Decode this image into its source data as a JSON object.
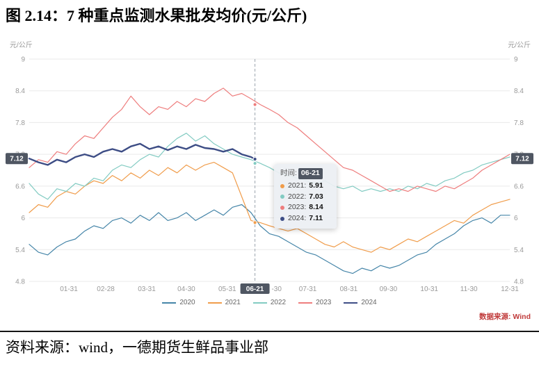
{
  "title": "图 2.14：7 种重点监测水果批发均价(元/公斤)",
  "caption": "资料来源：wind，一德期货生鲜品事业部",
  "chart_source": "数据来源: Wind",
  "axis_unit": "元/公斤",
  "tooltip": {
    "time_label": "时间:",
    "time_value": "06-21",
    "entries": [
      {
        "name": "2021",
        "value": "5.91",
        "color": "#f09c4a"
      },
      {
        "name": "2022",
        "value": "7.03",
        "color": "#82cbc2"
      },
      {
        "name": "2023",
        "value": "8.14",
        "color": "#ee7d7d"
      },
      {
        "name": "2024",
        "value": "7.11",
        "color": "#3d4d85"
      }
    ]
  },
  "chart_data": {
    "type": "line",
    "title": "7 种重点监测水果批发均价(元/公斤)",
    "ylabel": "元/公斤",
    "ylim": [
      4.8,
      9
    ],
    "yticks": [
      4.8,
      5.4,
      6,
      6.6,
      7.2,
      7.8,
      8.4,
      9
    ],
    "grid": true,
    "legend_position": "bottom",
    "badge_color": "#4f5662",
    "xticks": [
      {
        "day": 31,
        "label": "01-31"
      },
      {
        "day": 59,
        "label": "02-28"
      },
      {
        "day": 90,
        "label": "03-31"
      },
      {
        "day": 120,
        "label": "04-30"
      },
      {
        "day": 151,
        "label": "05-31"
      },
      {
        "day": 172,
        "label": "06-21",
        "badge": true
      },
      {
        "day": 181,
        "label": "-30",
        "dx": 14
      },
      {
        "day": 212,
        "label": "07-31"
      },
      {
        "day": 243,
        "label": "08-31"
      },
      {
        "day": 273,
        "label": "09-30"
      },
      {
        "day": 304,
        "label": "10-31"
      },
      {
        "day": 334,
        "label": "11-30"
      },
      {
        "day": 365,
        "label": "12-31"
      }
    ],
    "highlight": {
      "day": 172,
      "label": "06-21",
      "value": 7.12,
      "axis_value": "7.12"
    },
    "sample_days": [
      1,
      8,
      15,
      22,
      29,
      36,
      43,
      50,
      57,
      64,
      71,
      78,
      85,
      92,
      99,
      106,
      113,
      120,
      127,
      134,
      141,
      148,
      155,
      162,
      169,
      176,
      183,
      190,
      197,
      204,
      211,
      218,
      225,
      232,
      239,
      246,
      253,
      260,
      267,
      274,
      281,
      288,
      295,
      302,
      309,
      316,
      323,
      330,
      337,
      344,
      351,
      358,
      365
    ],
    "series": [
      {
        "name": "2020",
        "color": "#4585a8",
        "width": 1.2,
        "values": [
          5.5,
          5.35,
          5.3,
          5.45,
          5.55,
          5.6,
          5.75,
          5.85,
          5.8,
          5.95,
          6.0,
          5.9,
          6.05,
          5.95,
          6.1,
          5.95,
          6.0,
          6.1,
          5.95,
          6.05,
          6.15,
          6.05,
          6.2,
          6.25,
          6.1,
          5.85,
          5.7,
          5.65,
          5.55,
          5.45,
          5.35,
          5.3,
          5.2,
          5.1,
          5.0,
          4.95,
          5.05,
          5.0,
          5.1,
          5.05,
          5.1,
          5.2,
          5.3,
          5.35,
          5.5,
          5.6,
          5.7,
          5.85,
          5.95,
          6.0,
          5.9,
          6.05,
          6.05
        ]
      },
      {
        "name": "2021",
        "color": "#f09c4a",
        "width": 1.2,
        "values": [
          6.1,
          6.25,
          6.2,
          6.4,
          6.5,
          6.45,
          6.6,
          6.7,
          6.65,
          6.8,
          6.7,
          6.85,
          6.75,
          6.9,
          6.8,
          6.95,
          6.85,
          7.0,
          6.9,
          7.0,
          7.05,
          6.95,
          6.85,
          6.4,
          5.95,
          5.91,
          5.85,
          5.8,
          5.75,
          5.8,
          5.7,
          5.6,
          5.5,
          5.45,
          5.55,
          5.45,
          5.4,
          5.35,
          5.45,
          5.4,
          5.5,
          5.6,
          5.55,
          5.65,
          5.75,
          5.85,
          5.95,
          5.9,
          6.05,
          6.15,
          6.25,
          6.3,
          6.35
        ]
      },
      {
        "name": "2022",
        "color": "#82cbc2",
        "width": 1.2,
        "values": [
          6.65,
          6.45,
          6.35,
          6.55,
          6.5,
          6.65,
          6.6,
          6.75,
          6.7,
          6.9,
          7.0,
          6.95,
          7.1,
          7.2,
          7.15,
          7.35,
          7.5,
          7.6,
          7.45,
          7.55,
          7.4,
          7.3,
          7.2,
          7.15,
          7.1,
          7.03,
          6.95,
          6.85,
          6.8,
          6.75,
          6.7,
          6.65,
          6.7,
          6.6,
          6.55,
          6.6,
          6.5,
          6.55,
          6.5,
          6.55,
          6.5,
          6.6,
          6.55,
          6.65,
          6.6,
          6.7,
          6.75,
          6.85,
          6.9,
          7.0,
          7.05,
          7.1,
          7.15
        ]
      },
      {
        "name": "2023",
        "color": "#ee7d7d",
        "width": 1.2,
        "values": [
          6.95,
          7.1,
          7.05,
          7.25,
          7.2,
          7.4,
          7.55,
          7.5,
          7.7,
          7.9,
          8.05,
          8.3,
          8.1,
          7.95,
          8.1,
          8.05,
          8.2,
          8.1,
          8.25,
          8.2,
          8.35,
          8.45,
          8.3,
          8.35,
          8.25,
          8.14,
          8.05,
          7.95,
          7.8,
          7.7,
          7.55,
          7.4,
          7.25,
          7.1,
          6.95,
          6.9,
          6.8,
          6.7,
          6.6,
          6.5,
          6.55,
          6.5,
          6.6,
          6.55,
          6.5,
          6.6,
          6.55,
          6.65,
          6.75,
          6.9,
          7.0,
          7.1,
          7.2
        ]
      },
      {
        "name": "2024",
        "color": "#3d4d85",
        "width": 2.4,
        "days": [
          1,
          8,
          15,
          22,
          29,
          36,
          43,
          50,
          57,
          64,
          71,
          78,
          85,
          92,
          99,
          106,
          113,
          120,
          127,
          134,
          141,
          148,
          155,
          162,
          169,
          172
        ],
        "values": [
          7.12,
          7.05,
          7.0,
          7.1,
          7.05,
          7.15,
          7.2,
          7.15,
          7.25,
          7.3,
          7.25,
          7.35,
          7.4,
          7.3,
          7.35,
          7.28,
          7.35,
          7.3,
          7.38,
          7.32,
          7.3,
          7.25,
          7.3,
          7.2,
          7.15,
          7.11
        ]
      }
    ],
    "markers": [
      {
        "series": "2021",
        "day": 172,
        "value": 5.91
      },
      {
        "series": "2022",
        "day": 172,
        "value": 7.03
      },
      {
        "series": "2023",
        "day": 172,
        "value": 8.14
      },
      {
        "series": "2024",
        "day": 172,
        "value": 7.11
      }
    ]
  }
}
